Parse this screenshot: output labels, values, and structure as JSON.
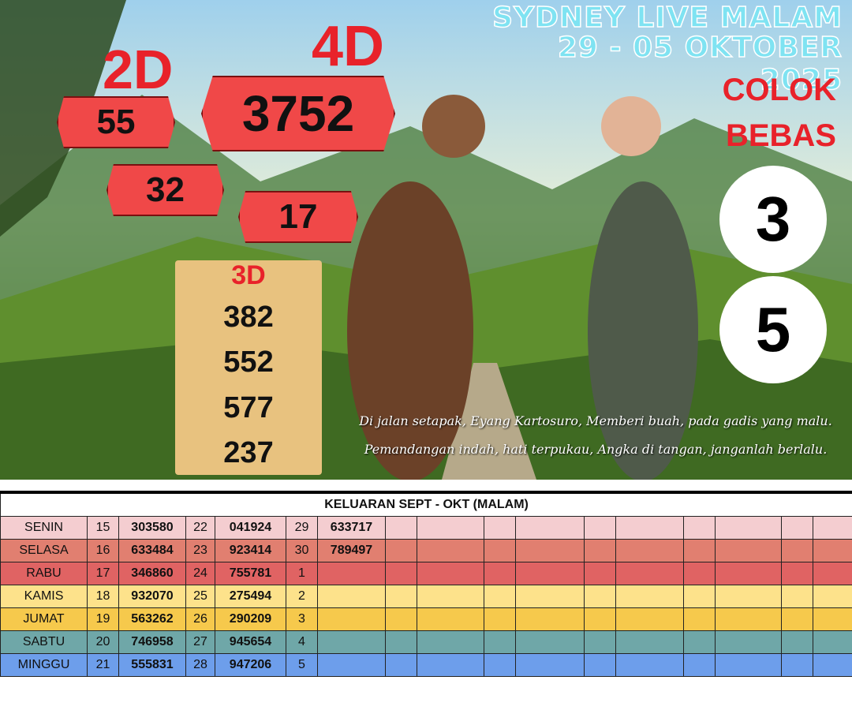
{
  "header": {
    "title": "SYDNEY LIVE MALAM",
    "date": "29 - 05 OKTOBER 2025"
  },
  "labels": {
    "two_d": "2D",
    "four_d": "4D",
    "three_d": "3D",
    "colok": "COLOK",
    "bebas": "BEBAS"
  },
  "four_d": "3752",
  "two_d": [
    "55",
    "32",
    "17"
  ],
  "three_d": [
    "382",
    "552",
    "577",
    "237"
  ],
  "colok_bebas": [
    "3",
    "5"
  ],
  "poem": [
    "Di jalan setapak, Eyang Kartosuro, Memberi buah, pada gadis yang malu.",
    "Pemandangan indah, hati terpukau, Angka di tangan, janganlah berlalu."
  ],
  "table": {
    "title": "KELUARAN SEPT - OKT (MALAM)",
    "rows": [
      [
        "SENIN",
        "15",
        "303580",
        "22",
        "041924",
        "29",
        "633717"
      ],
      [
        "SELASA",
        "16",
        "633484",
        "23",
        "923414",
        "30",
        "789497"
      ],
      [
        "RABU",
        "17",
        "346860",
        "24",
        "755781",
        "1"
      ],
      [
        "KAMIS",
        "18",
        "932070",
        "25",
        "275494",
        "2"
      ],
      [
        "JUMAT",
        "19",
        "563262",
        "26",
        "290209",
        "3"
      ],
      [
        "SABTU",
        "20",
        "746958",
        "27",
        "945654",
        "4"
      ],
      [
        "MINGGU",
        "21",
        "555831",
        "28",
        "947206",
        "5"
      ]
    ]
  }
}
